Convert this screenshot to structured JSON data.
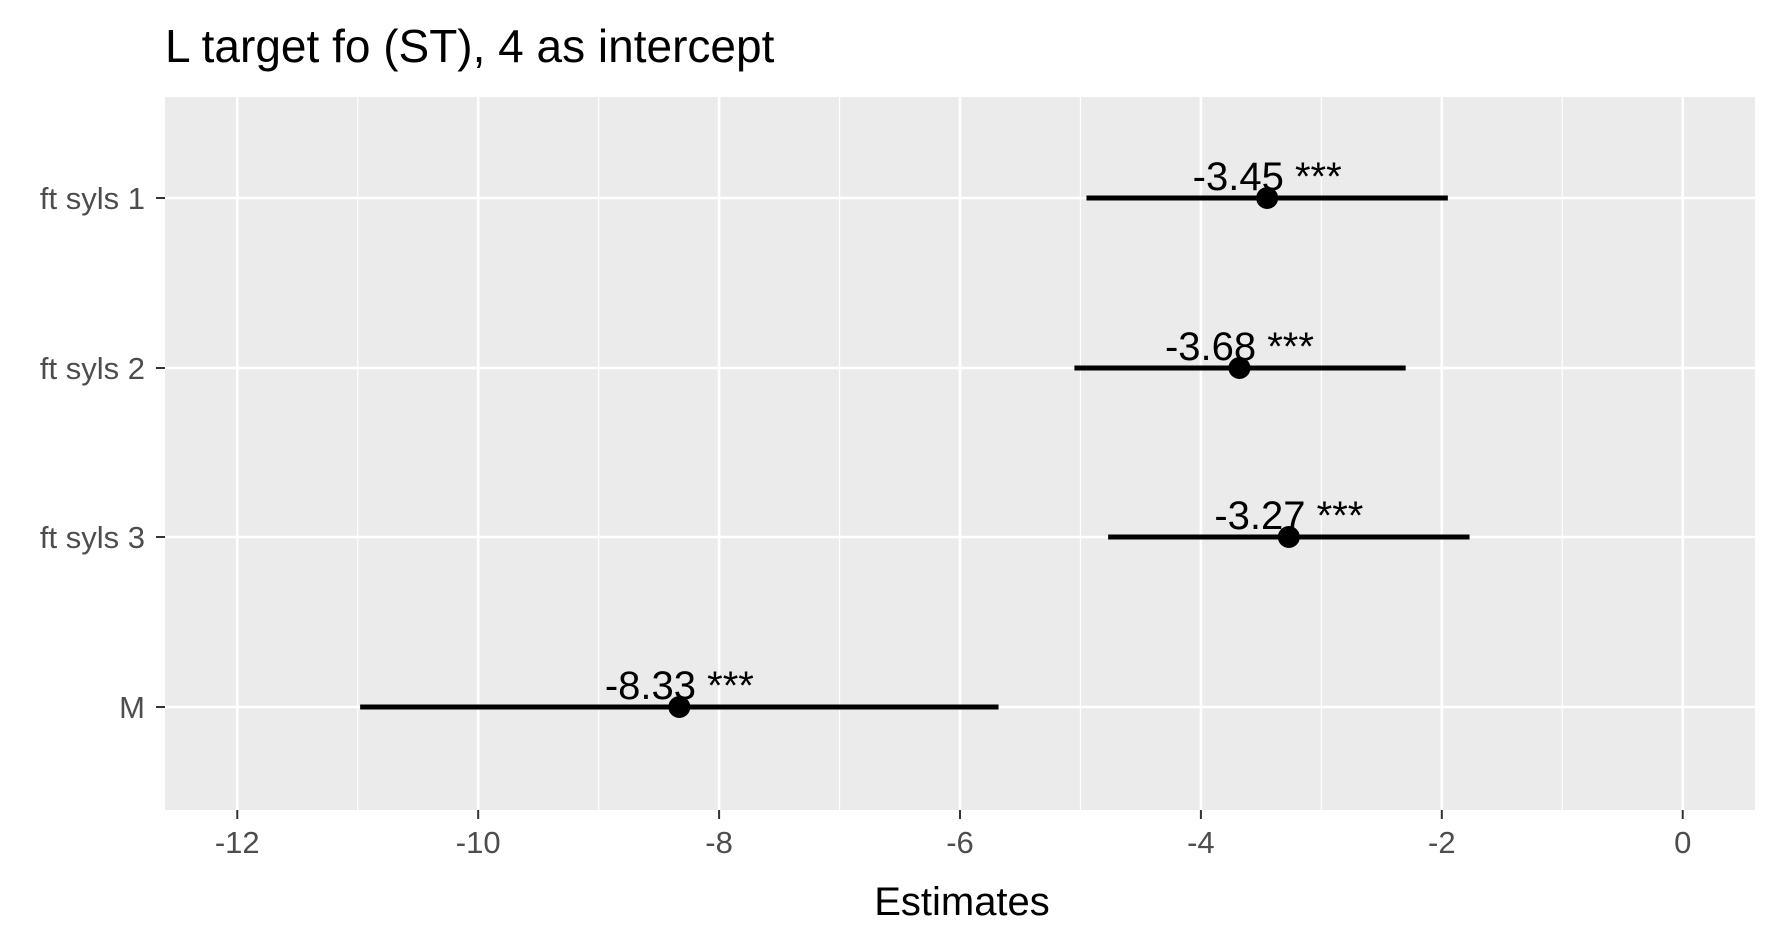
{
  "chart_data": {
    "type": "forest",
    "title": "L target fo (ST), 4 as intercept",
    "xlabel": "Estimates",
    "ylabel": "",
    "xlim": [
      -12.6,
      0.6
    ],
    "x_ticks": [
      -12,
      -10,
      -8,
      -6,
      -4,
      -2,
      0
    ],
    "x_tick_labels": [
      "-12",
      "-10",
      "-8",
      "-6",
      "-4",
      "-2",
      "0"
    ],
    "grid": true,
    "panel_background": "#ebebeb",
    "grid_color": "#ffffff",
    "point_color": "#000000",
    "terms": [
      {
        "label": "ft syls 1",
        "estimate": -3.45,
        "ci_low": -4.95,
        "ci_high": -1.95,
        "annotation": "-3.45 ***"
      },
      {
        "label": "ft syls 2",
        "estimate": -3.68,
        "ci_low": -5.05,
        "ci_high": -2.3,
        "annotation": "-3.68 ***"
      },
      {
        "label": "ft syls 3",
        "estimate": -3.27,
        "ci_low": -4.77,
        "ci_high": -1.77,
        "annotation": "-3.27 ***"
      },
      {
        "label": "M",
        "estimate": -8.33,
        "ci_low": -10.98,
        "ci_high": -5.68,
        "annotation": "-8.33 ***"
      }
    ]
  }
}
